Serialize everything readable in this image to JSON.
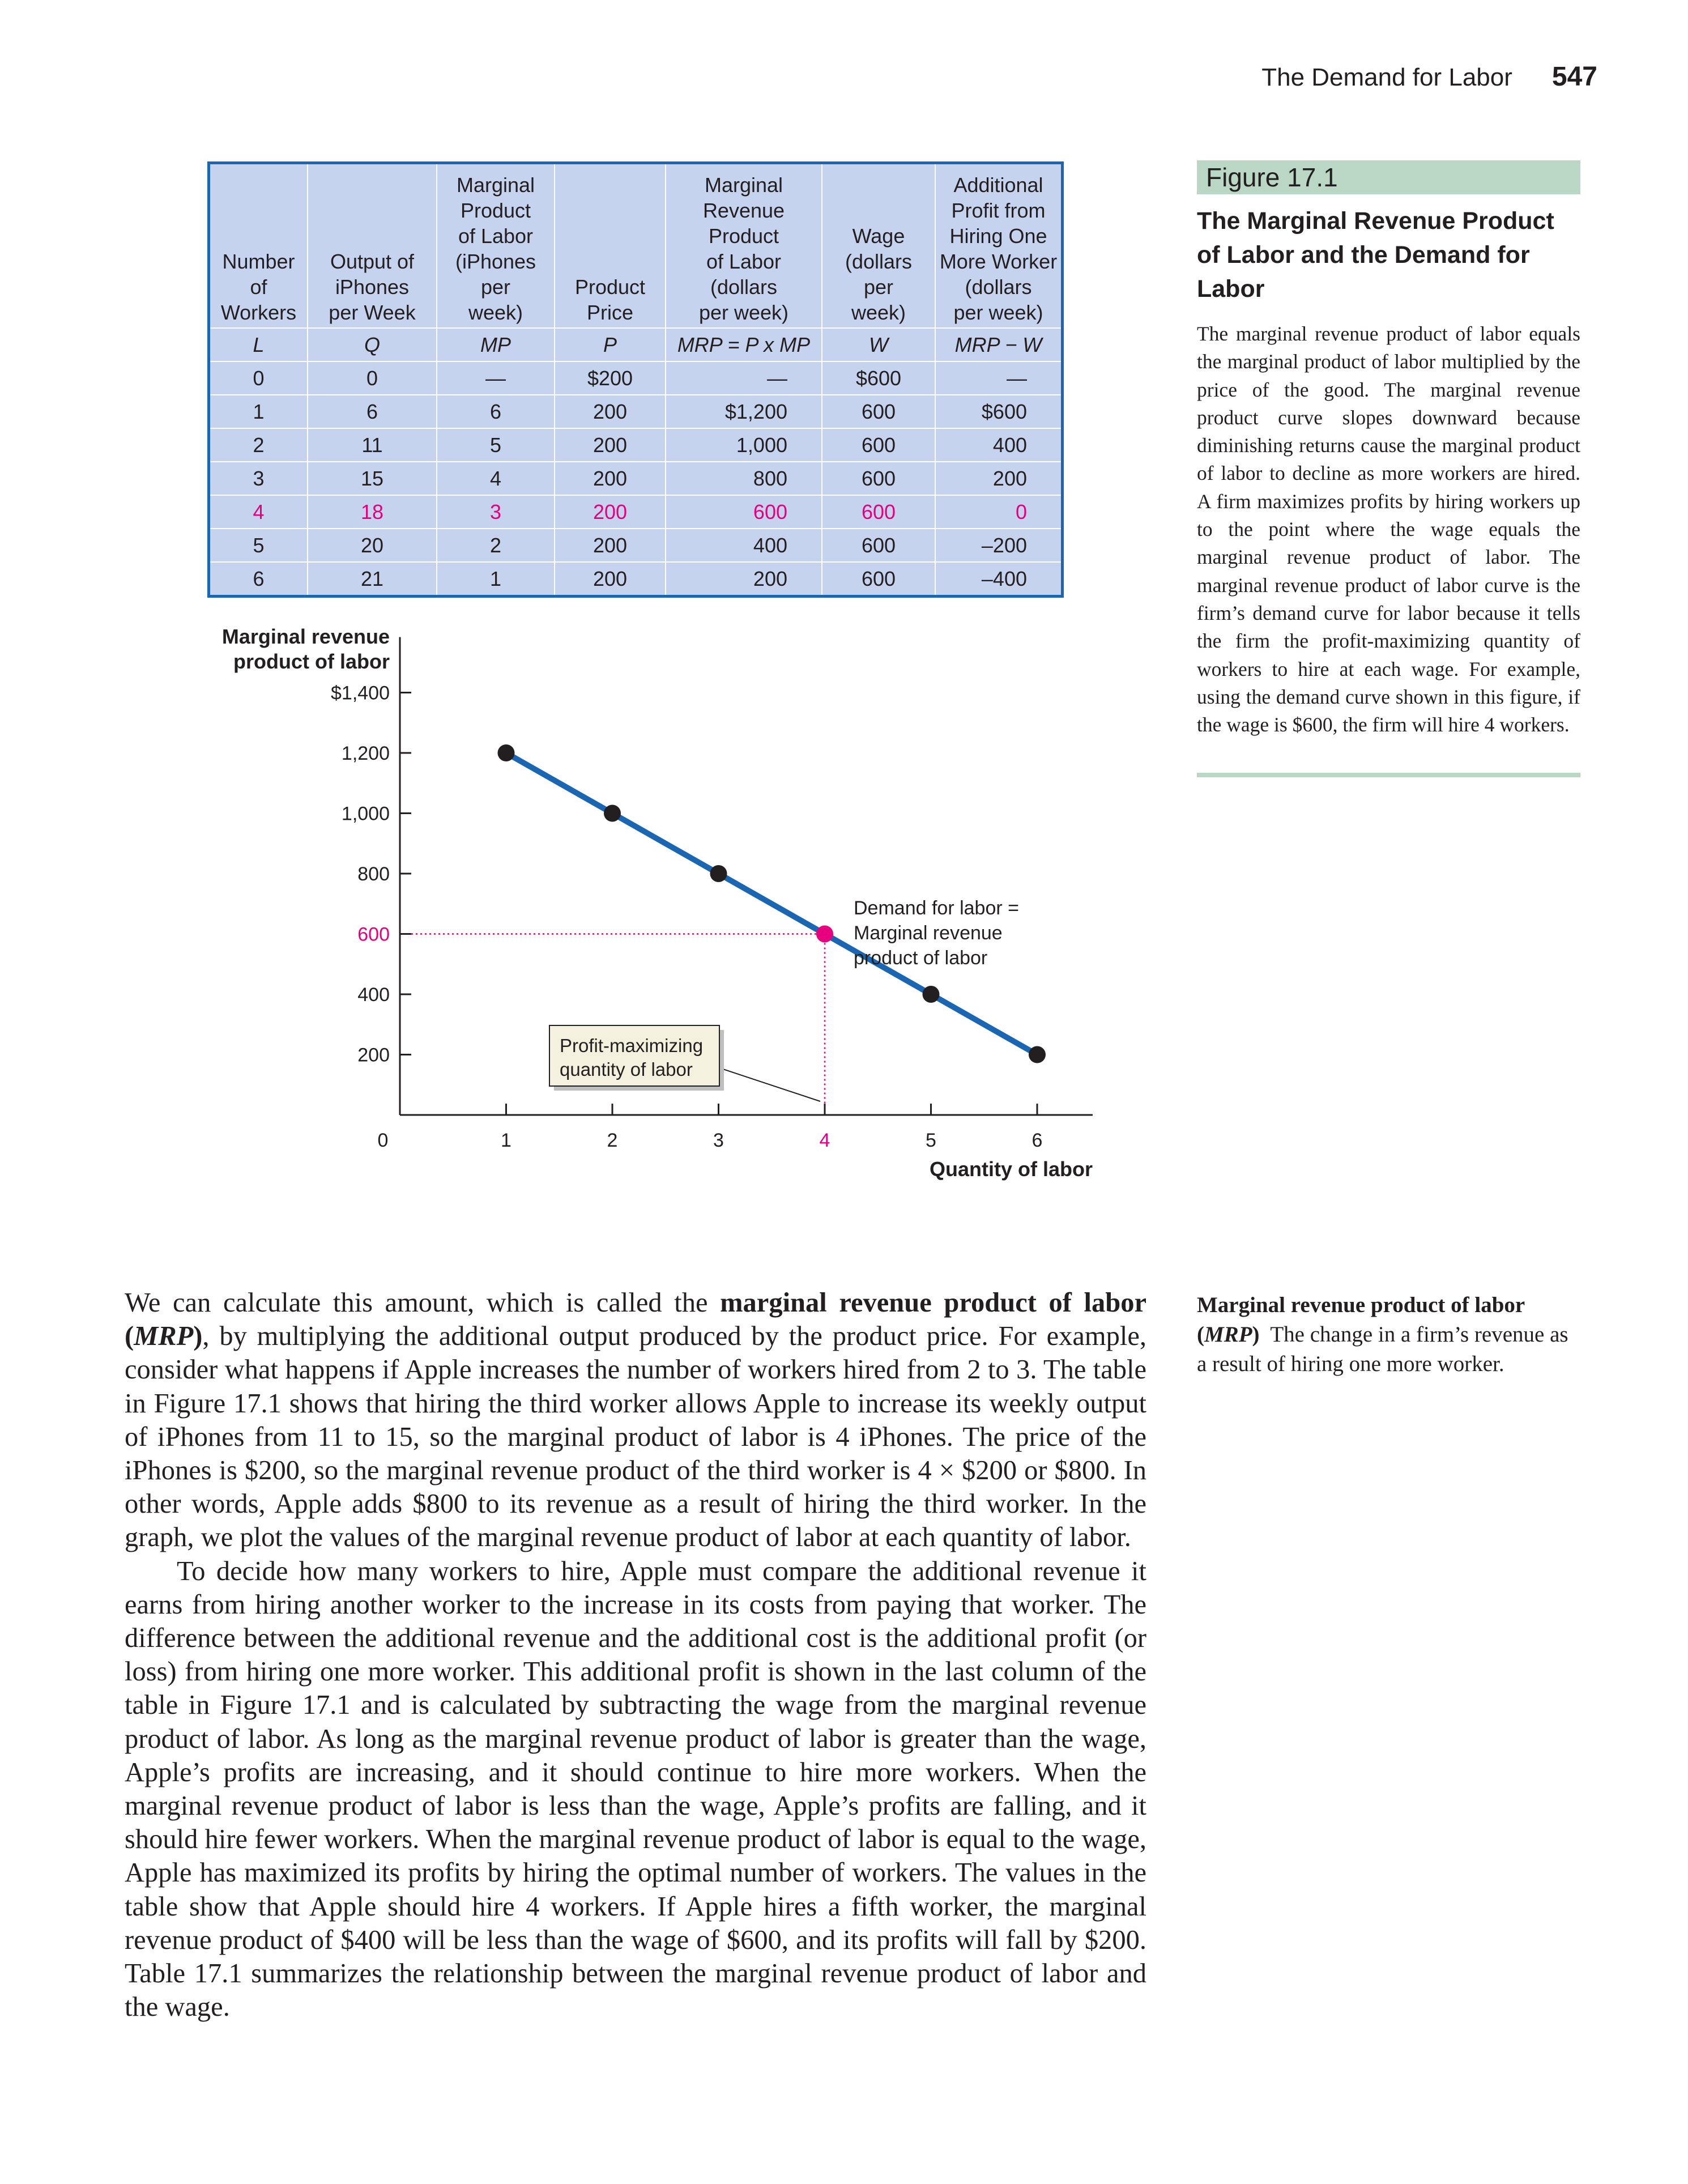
{
  "running_head": {
    "title": "The Demand for Labor",
    "page": "547"
  },
  "table": {
    "headers": [
      [
        "Number",
        "of",
        "Workers"
      ],
      [
        "Output of",
        "iPhones",
        "per Week"
      ],
      [
        "Marginal",
        "Product",
        "of Labor",
        "(iPhones",
        "per",
        "week)"
      ],
      [
        "Product",
        "Price"
      ],
      [
        "Marginal",
        "Revenue",
        "Product",
        "of Labor",
        "(dollars",
        "per week)"
      ],
      [
        "Wage",
        "(dollars",
        "per",
        "week)"
      ],
      [
        "Additional",
        "Profit from",
        "Hiring One",
        "More Worker",
        "(dollars",
        "per week)"
      ]
    ],
    "symbols": [
      "L",
      "Q",
      "MP",
      "P",
      "MRP = P x MP",
      "W",
      "MRP − W"
    ],
    "rows": [
      [
        "0",
        "0",
        "—",
        "$200",
        "—",
        "$600",
        "—"
      ],
      [
        "1",
        "6",
        "6",
        "200",
        "$1,200",
        "600",
        "$600"
      ],
      [
        "2",
        "11",
        "5",
        "200",
        "1,000",
        "600",
        "400"
      ],
      [
        "3",
        "15",
        "4",
        "200",
        "800",
        "600",
        "200"
      ],
      [
        "4",
        "18",
        "3",
        "200",
        "600",
        "600",
        "0"
      ],
      [
        "5",
        "20",
        "2",
        "200",
        "400",
        "600",
        "–200"
      ],
      [
        "6",
        "21",
        "1",
        "200",
        "200",
        "600",
        "–400"
      ]
    ],
    "highlight_row": 4,
    "colors": {
      "fill": "#c6d3ef",
      "border": "#1a66b3",
      "highlight": "#e6007e"
    }
  },
  "chart_data": {
    "type": "line",
    "ylabel": "Marginal revenue product of labor",
    "xlabel": "Quantity of labor",
    "x": [
      1,
      2,
      3,
      4,
      5,
      6
    ],
    "series": [
      {
        "name": "Demand for labor = Marginal revenue product of labor",
        "values": [
          1200,
          1000,
          800,
          600,
          400,
          200
        ]
      }
    ],
    "xlim": [
      0,
      6
    ],
    "ylim": [
      0,
      1400
    ],
    "x_ticks": [
      "1",
      "2",
      "3",
      "4",
      "5",
      "6"
    ],
    "x_zero_label": "0",
    "y_ticks": [
      "200",
      "400",
      "600",
      "800",
      "1,000",
      "1,200",
      "$1,400"
    ],
    "y_tick_values": [
      200,
      400,
      600,
      800,
      1000,
      1200,
      1400
    ],
    "highlight": {
      "x": 4,
      "y": 600
    },
    "curve_label_lines": [
      "Demand for labor =",
      "Marginal revenue",
      "product of labor"
    ],
    "callout_lines": [
      "Profit-maximizing",
      "quantity of labor"
    ],
    "colors": {
      "line": "#1a66b3",
      "point": "#231f20",
      "highlight": "#e6007e",
      "callout_bg": "#f4f1de"
    }
  },
  "figure": {
    "label": "Figure 17.1",
    "title": "The Marginal Revenue Product of Labor and the Demand for Labor",
    "caption": "The marginal revenue product of labor equals the marginal product of labor multiplied by the price of the good. The marginal revenue product curve slopes downward because diminishing returns cause the marginal product of labor to decline as more workers are hired. A firm maximizes profits by hiring workers up to the point where the wage equals the marginal revenue product of labor. The marginal revenue product of labor curve is the firm’s demand curve for labor because it tells the firm the profit-maximizing quantity of workers to hire at each wage. For example, using the demand curve shown in this figure, if the wage is $600, the firm will hire 4 workers."
  },
  "body": {
    "p1_a": "We can calculate this amount, which is called the ",
    "p1_term": "marginal revenue product of labor (",
    "p1_term_abbr": "MRP",
    "p1_term_end": ")",
    "p1_b": ", by multiplying the additional output produced by the product price. For example, consider what happens if Apple increases the number of workers hired from 2 to 3. The table in Figure 17.1 shows that hiring the third worker allows Apple to increase its weekly output of iPhones from 11 to 15, so the marginal product of labor is 4 iPhones. The price of the iPhones is $200, so the marginal revenue product of the third worker is 4 × $200 or $800. In other words, Apple adds $800 to its revenue as a result of hiring the third worker. In the graph, we plot the values of the marginal revenue product of labor at each quantity of labor.",
    "p2": "To decide how many workers to hire, Apple must compare the additional revenue it earns from hiring another worker to the increase in its costs from paying that worker. The difference between the additional revenue and the additional cost is the additional profit (or loss) from hiring one more worker. This additional profit is shown in the last column of the table in Figure 17.1 and is calculated by subtracting the wage from the marginal revenue product of labor. As long as the marginal revenue product of labor is greater than the wage, Apple’s profits are increasing, and it should continue to hire more workers. When the marginal revenue product of labor is less than the wage, Apple’s profits are falling, and it should hire fewer workers. When the marginal revenue product of labor is equal to the wage, Apple has maximized its profits by hiring the optimal number of workers. The values in the table show that Apple should hire 4 workers. If Apple hires a fifth worker, the marginal revenue product of $400 will be less than the wage of $600, and its profits will fall by $200. Table 17.1 summarizes the relationship between the marginal revenue product of labor and the wage."
  },
  "glossary": {
    "term": "Marginal revenue product of labor",
    "abbr_open": "(",
    "abbr": "MRP",
    "abbr_close": ")",
    "definition": "The change in a firm’s revenue as a result of hiring one more worker."
  }
}
